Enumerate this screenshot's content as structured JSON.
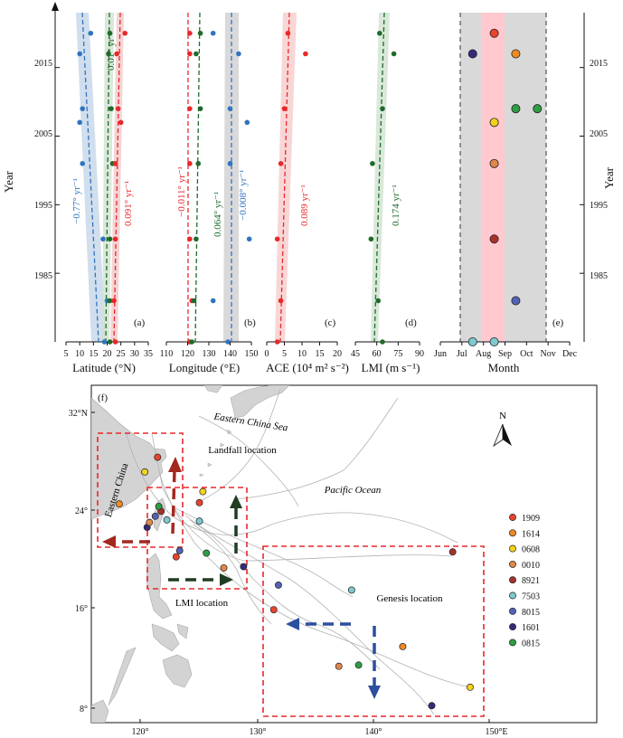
{
  "colors": {
    "blue": "#2f74c0",
    "green": "#1e6b2a",
    "red": "#e8282b",
    "gray_band": "#d9d9d9",
    "pink_band": "#ffc9cf",
    "land": "#d4d4d4",
    "track": "#b5b5b5",
    "box": "#e8282b",
    "arrow_red": "#a3281f",
    "arrow_green": "#1f3d22",
    "arrow_blue": "#2c4f9e"
  },
  "top_panels": {
    "y_label": "Year",
    "year_ticks": [
      "2015",
      "2005",
      "1995",
      "1985"
    ],
    "year_range": [
      1975,
      2023
    ],
    "labels": [
      "(a)",
      "(b)",
      "(c)",
      "(d)",
      "(e)"
    ]
  },
  "chart_data": [
    {
      "id": "a",
      "type": "scatter",
      "xlabel": "Latitude (°N)",
      "xticks": [
        "5",
        "10",
        "15",
        "20",
        "25",
        "30",
        "35"
      ],
      "xlim": [
        5,
        35
      ],
      "series": [
        {
          "name": "genesis",
          "color": "blue",
          "points": [
            [
              19,
              1975
            ],
            [
              20,
              1981
            ],
            [
              18.5,
              1990
            ],
            [
              11,
              2001
            ],
            [
              10,
              2007
            ],
            [
              11,
              2009
            ],
            [
              10,
              2017
            ],
            [
              14,
              2020
            ]
          ]
        },
        {
          "name": "LMI",
          "color": "green",
          "points": [
            [
              21,
              1975
            ],
            [
              21,
              1981
            ],
            [
              21,
              1990
            ],
            [
              22,
              2001
            ],
            [
              21.5,
              2009
            ],
            [
              20.5,
              2017
            ],
            [
              21,
              2020
            ]
          ]
        },
        {
          "name": "landfall",
          "color": "red",
          "points": [
            [
              23,
              1975
            ],
            [
              22.5,
              1981
            ],
            [
              23,
              1990
            ],
            [
              23,
              2001
            ],
            [
              25,
              2007
            ],
            [
              24,
              2009
            ],
            [
              23.5,
              2017
            ],
            [
              26.5,
              2020
            ]
          ]
        }
      ],
      "trend_labels": [
        {
          "text": "−0.77° yr⁻¹",
          "color": "blue"
        },
        {
          "text": "0.01° yr⁻¹",
          "color": "green"
        },
        {
          "text": "0.091° yr⁻¹",
          "color": "red"
        }
      ]
    },
    {
      "id": "b",
      "type": "scatter",
      "xlabel": "Longitude (°E)",
      "xticks": [
        "110",
        "120",
        "130",
        "140",
        "150"
      ],
      "xlim": [
        110,
        150
      ],
      "series": [
        {
          "name": "landfall",
          "color": "red",
          "points": [
            [
              121,
              1975
            ],
            [
              122,
              1981
            ],
            [
              121,
              1990
            ],
            [
              121,
              2001
            ],
            [
              121,
              2009
            ],
            [
              121,
              2017
            ],
            [
              121,
              2020
            ]
          ]
        },
        {
          "name": "LMI",
          "color": "green",
          "points": [
            [
              122,
              1975
            ],
            [
              123,
              1981
            ],
            [
              124,
              1990
            ],
            [
              125,
              2001
            ],
            [
              126,
              2009
            ],
            [
              124,
              2017
            ],
            [
              126,
              2020
            ]
          ]
        },
        {
          "name": "genesis",
          "color": "blue",
          "points": [
            [
              139,
              1975
            ],
            [
              132,
              1981
            ],
            [
              149,
              1990
            ],
            [
              140,
              2001
            ],
            [
              148,
              2007
            ],
            [
              140,
              2009
            ],
            [
              144,
              2017
            ],
            [
              132,
              2020
            ]
          ]
        }
      ],
      "trend_labels": [
        {
          "text": "−0.011° yr⁻¹",
          "color": "red"
        },
        {
          "text": "0.064° yr⁻¹",
          "color": "green"
        },
        {
          "text": "−0.008° yr⁻¹",
          "color": "blue"
        }
      ]
    },
    {
      "id": "c",
      "type": "scatter",
      "xlabel": "ACE (10⁴ m² s⁻²)",
      "xticks": [
        "0",
        "5",
        "10",
        "15",
        "20"
      ],
      "xlim": [
        0,
        20
      ],
      "series": [
        {
          "name": "ACE",
          "color": "red",
          "points": [
            [
              3,
              1975
            ],
            [
              4,
              1981
            ],
            [
              3,
              1990
            ],
            [
              4,
              2001
            ],
            [
              5,
              2009
            ],
            [
              11,
              2017
            ],
            [
              6,
              2020
            ]
          ]
        }
      ],
      "trend_labels": [
        {
          "text": "0.089 yr⁻¹",
          "color": "red"
        }
      ]
    },
    {
      "id": "d",
      "type": "scatter",
      "xlabel": "LMI (m s⁻¹)",
      "xticks": [
        "45",
        "60",
        "75",
        "90"
      ],
      "xlim": [
        45,
        90
      ],
      "series": [
        {
          "name": "LMI",
          "color": "green",
          "points": [
            [
              64,
              1975
            ],
            [
              61,
              1981
            ],
            [
              56,
              1990
            ],
            [
              57,
              2001
            ],
            [
              64,
              2009
            ],
            [
              72,
              2017
            ],
            [
              62,
              2020
            ]
          ]
        }
      ],
      "trend_labels": [
        {
          "text": "0.174 yr⁻¹",
          "color": "green"
        }
      ]
    },
    {
      "id": "e",
      "type": "scatter",
      "xlabel": "Month",
      "xticks": [
        "Jun",
        "Jul",
        "Aug",
        "Sep",
        "Oct",
        "Nov",
        "Dec"
      ],
      "xlim": [
        6,
        12
      ],
      "series": [
        {
          "name": "events",
          "points": [
            {
              "month": 8.5,
              "year": 2020,
              "color": "#e8442b"
            },
            {
              "month": 7.5,
              "year": 2017,
              "color": "#352a7a"
            },
            {
              "month": 9.5,
              "year": 2017,
              "color": "#f08a24"
            },
            {
              "month": 9.5,
              "year": 2009,
              "color": "#2e9e43"
            },
            {
              "month": 10.5,
              "year": 2009,
              "color": "#2e9e43"
            },
            {
              "month": 8.5,
              "year": 2007,
              "color": "#f2d21c"
            },
            {
              "month": 8.5,
              "year": 2001,
              "color": "#e0874a"
            },
            {
              "month": 8.5,
              "year": 1990,
              "color": "#a6322c"
            },
            {
              "month": 9.5,
              "year": 1981,
              "color": "#5561b5"
            },
            {
              "month": 7.5,
              "year": 1975,
              "color": "#7dc9cf"
            },
            {
              "month": 8.5,
              "year": 1975,
              "color": "#7dc9cf"
            }
          ]
        }
      ]
    },
    {
      "id": "f",
      "type": "map",
      "panel_label": "(f)",
      "lat_ticks": [
        "32°N",
        "24°",
        "16°",
        "8°"
      ],
      "lon_ticks": [
        "120°",
        "130°",
        "140°",
        "150°E"
      ],
      "place_labels": {
        "sea": "Eastern China Sea",
        "landfall": "Landfall location",
        "ocean": "Pacific Ocean",
        "china": "Eastern China",
        "lmi": "LMI location",
        "genesis": "Genesis location"
      },
      "north": "N",
      "legend": [
        {
          "id": "1909",
          "color": "#e8442b"
        },
        {
          "id": "1614",
          "color": "#f08a24"
        },
        {
          "id": "0608",
          "color": "#f2d21c"
        },
        {
          "id": "0010",
          "color": "#e0874a"
        },
        {
          "id": "8921",
          "color": "#a6322c"
        },
        {
          "id": "7503",
          "color": "#7dc9cf"
        },
        {
          "id": "8015",
          "color": "#5561b5"
        },
        {
          "id": "1601",
          "color": "#352a7a"
        },
        {
          "id": "0815",
          "color": "#2e9e43"
        }
      ],
      "points": [
        {
          "lon": 121.5,
          "lat": 28.3,
          "color": "#e8442b"
        },
        {
          "lon": 120.4,
          "lat": 27.1,
          "color": "#f2d21c"
        },
        {
          "lon": 118.2,
          "lat": 24.5,
          "color": "#f08a24"
        },
        {
          "lon": 121.8,
          "lat": 23.9,
          "color": "#a6322c"
        },
        {
          "lon": 121.6,
          "lat": 24.3,
          "color": "#2e9e43"
        },
        {
          "lon": 121.3,
          "lat": 23.5,
          "color": "#5561b5"
        },
        {
          "lon": 120.6,
          "lat": 22.6,
          "color": "#352a7a"
        },
        {
          "lon": 120.8,
          "lat": 23.0,
          "color": "#e0874a"
        },
        {
          "lon": 122.3,
          "lat": 23.2,
          "color": "#7dc9cf"
        },
        {
          "lon": 125.4,
          "lat": 25.5,
          "color": "#f2d21c"
        },
        {
          "lon": 125.1,
          "lat": 24.6,
          "color": "#e8442b"
        },
        {
          "lon": 125.1,
          "lat": 23.1,
          "color": "#7dc9cf"
        },
        {
          "lon": 123.4,
          "lat": 20.7,
          "color": "#5561b5"
        },
        {
          "lon": 125.7,
          "lat": 20.5,
          "color": "#2e9e43"
        },
        {
          "lon": 123.1,
          "lat": 20.2,
          "color": "#e8442b"
        },
        {
          "lon": 127.2,
          "lat": 19.3,
          "color": "#e0874a"
        },
        {
          "lon": 128.9,
          "lat": 19.4,
          "color": "#352a7a"
        },
        {
          "lon": 131.9,
          "lat": 17.9,
          "color": "#5561b5"
        },
        {
          "lon": 138.2,
          "lat": 17.5,
          "color": "#7dc9cf"
        },
        {
          "lon": 146.9,
          "lat": 20.6,
          "color": "#a6322c"
        },
        {
          "lon": 131.5,
          "lat": 15.9,
          "color": "#e8442b"
        },
        {
          "lon": 142.6,
          "lat": 12.9,
          "color": "#f08a24"
        },
        {
          "lon": 137.1,
          "lat": 11.3,
          "color": "#e0874a"
        },
        {
          "lon": 138.8,
          "lat": 11.4,
          "color": "#2e9e43"
        },
        {
          "lon": 148.4,
          "lat": 9.6,
          "color": "#f2d21c"
        },
        {
          "lon": 145.1,
          "lat": 8.1,
          "color": "#352a7a"
        }
      ]
    }
  ]
}
